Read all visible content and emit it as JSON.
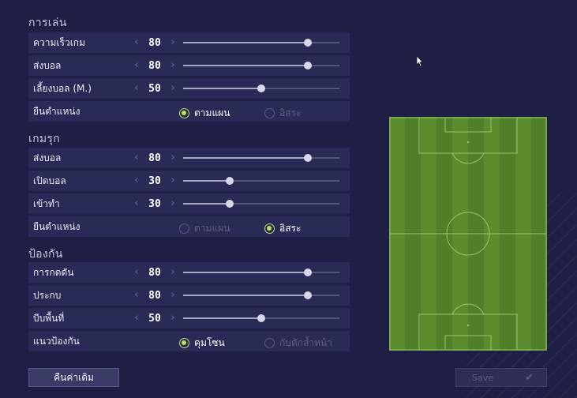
{
  "sections": {
    "attack_build": "การเล่น",
    "chance": "เกมรุก",
    "defence": "ป้องกัน"
  },
  "rows": {
    "speed": {
      "label": "ความเร็วเกม",
      "value": "80",
      "level": 80
    },
    "passing1": {
      "label": "ส่งบอล",
      "value": "80",
      "level": 80
    },
    "dribble": {
      "label": "เลี้ยงบอล (M.)",
      "value": "50",
      "level": 50
    },
    "position1": {
      "label": "ยืนตำแหน่ง",
      "opt_a": "ตามแผน",
      "opt_b": "อิสระ",
      "selected": "a"
    },
    "passing2": {
      "label": "ส่งบอล",
      "value": "80",
      "level": 80
    },
    "crossing": {
      "label": "เปิดบอล",
      "value": "30",
      "level": 30
    },
    "shooting": {
      "label": "เข้าทำ",
      "value": "30",
      "level": 30
    },
    "position2": {
      "label": "ยืนตำแหน่ง",
      "opt_a": "ตามแผน",
      "opt_b": "อิสระ",
      "selected": "b"
    },
    "pressure": {
      "label": "การกดดัน",
      "value": "80",
      "level": 80
    },
    "aggression": {
      "label": "ประกบ",
      "value": "80",
      "level": 80
    },
    "width": {
      "label": "บีบพื้นที่",
      "value": "50",
      "level": 50
    },
    "defline": {
      "label": "แนวป้องกัน",
      "opt_a": "คุมโซน",
      "opt_b": "กับดักล้ำหน้า",
      "selected": "a"
    }
  },
  "arrows": {
    "left": "‹",
    "right": "›"
  },
  "buttons": {
    "reset": "คืนค่าเดิม",
    "save": "Save",
    "save_icon": "✔"
  },
  "colors": {
    "accent": "#b6e35a",
    "pitch_light": "#5a8c2e",
    "pitch_dark": "#4d7d26",
    "background": "#1f1f45"
  },
  "icons": {
    "cursor": "mouse-pointer-icon",
    "check": "checkmark-icon"
  }
}
